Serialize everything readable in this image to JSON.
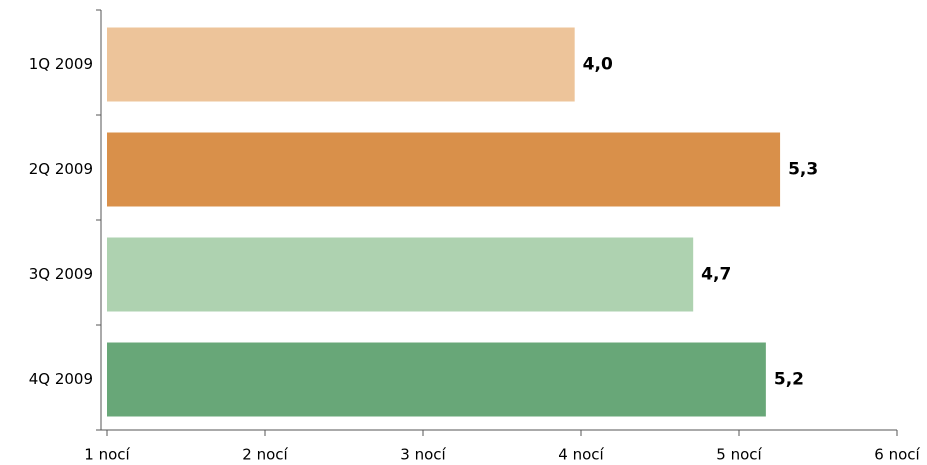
{
  "chart_data": {
    "type": "barh",
    "categories": [
      "1Q 2009",
      "2Q 2009",
      "3Q 2009",
      "4Q 2009"
    ],
    "values": [
      3.96,
      5.26,
      4.71,
      5.17
    ],
    "value_labels": [
      "4,0",
      "5,3",
      "4,7",
      "5,2"
    ],
    "colors": [
      "#edc49a",
      "#d9904a",
      "#aed2b0",
      "#68a778"
    ],
    "xlim": [
      1,
      6
    ],
    "xticks": [
      {
        "value": 1,
        "label": "1 nocí"
      },
      {
        "value": 2,
        "label": "2 nocí"
      },
      {
        "value": 3,
        "label": "3 nocí"
      },
      {
        "value": 4,
        "label": "4 nocí"
      },
      {
        "value": 5,
        "label": "5 nocí"
      },
      {
        "value": 6,
        "label": "6 nocí"
      }
    ]
  }
}
